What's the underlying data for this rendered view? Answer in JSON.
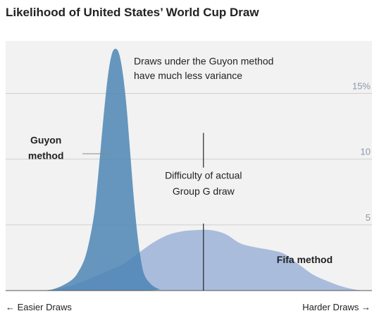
{
  "chart_data": {
    "type": "area",
    "title": "Likelihood of United States’ World Cup Draw",
    "xlabel_left": "← Easier Draws",
    "xlabel_right": "Harder Draws →",
    "ylim": [
      0,
      19
    ],
    "xlim": [
      0,
      100
    ],
    "y_ticks": [
      {
        "value": 5,
        "label": "5"
      },
      {
        "value": 10,
        "label": "10"
      },
      {
        "value": 15,
        "label": "15%"
      }
    ],
    "grid": true,
    "actual_draw_x": 54,
    "series": [
      {
        "name": "Fifa method",
        "color": "#a9bcdc",
        "x": [
          0,
          10,
          17,
          22,
          28,
          32,
          36,
          40,
          44,
          48,
          52,
          56,
          60,
          64,
          68,
          72,
          76,
          80,
          84,
          88,
          92,
          96,
          100
        ],
        "y": [
          0,
          0,
          0.3,
          0.8,
          1.5,
          2.0,
          2.8,
          3.6,
          4.2,
          4.5,
          4.6,
          4.6,
          4.3,
          3.6,
          3.3,
          3.1,
          2.8,
          2.0,
          1.2,
          0.7,
          0.3,
          0.05,
          0
        ]
      },
      {
        "name": "Guyon method",
        "color": "#4d86b4",
        "x": [
          0,
          10,
          14,
          18,
          20,
          22,
          24,
          25,
          26,
          27,
          28,
          29,
          30,
          31,
          32,
          33,
          34,
          35,
          36,
          37,
          38,
          40,
          42,
          44,
          100
        ],
        "y": [
          0,
          0,
          0.2,
          0.8,
          1.5,
          2.8,
          5.5,
          8,
          11,
          14,
          16.5,
          18,
          18.4,
          18,
          16.5,
          14,
          10.5,
          7,
          4.2,
          2.2,
          1.1,
          0.4,
          0.1,
          0,
          0
        ]
      }
    ],
    "annotations": [
      {
        "text": "Draws under the Guyon method",
        "x": 35,
        "y": 17.2
      },
      {
        "text": "have much less variance",
        "x": 35,
        "y": 16.1
      },
      {
        "text": "Difficulty of actual",
        "x": 54,
        "y": 8.5
      },
      {
        "text": "Group G draw",
        "x": 54,
        "y": 7.3
      }
    ],
    "series_labels": [
      {
        "text": "Guyon",
        "x": 11,
        "y": 11.2
      },
      {
        "text": "method",
        "x": 11,
        "y": 10.0
      },
      {
        "text": "Fifa method",
        "x": 74,
        "y": 2.1
      }
    ],
    "overlap_color": "#5b8dbb"
  }
}
